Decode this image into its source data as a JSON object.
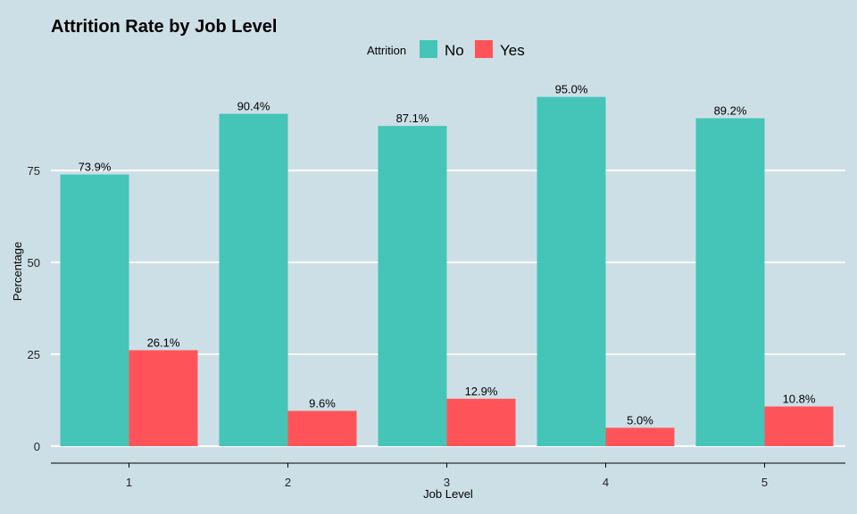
{
  "chart_data": {
    "type": "bar",
    "title": "Attrition Rate by Job Level",
    "xlabel": "Job Level",
    "ylabel": "Percentage",
    "categories": [
      "1",
      "2",
      "3",
      "4",
      "5"
    ],
    "legend": {
      "title": "Attrition",
      "position": "top"
    },
    "series": [
      {
        "name": "No",
        "color": "#45c4b8",
        "values": [
          73.9,
          90.4,
          87.1,
          95.0,
          89.2
        ],
        "labels": [
          "73.9%",
          "90.4%",
          "87.1%",
          "95.0%",
          "89.2%"
        ]
      },
      {
        "name": "Yes",
        "color": "#fe5459",
        "values": [
          26.1,
          9.6,
          12.9,
          5.0,
          10.8
        ],
        "labels": [
          "26.1%",
          "9.6%",
          "12.9%",
          "5.0%",
          "10.8%"
        ]
      }
    ],
    "ylim": [
      0,
      100
    ],
    "yticks": [
      0,
      25,
      50,
      75
    ],
    "ytick_labels": [
      "0",
      "25",
      "50",
      "75"
    ],
    "grid": true
  }
}
